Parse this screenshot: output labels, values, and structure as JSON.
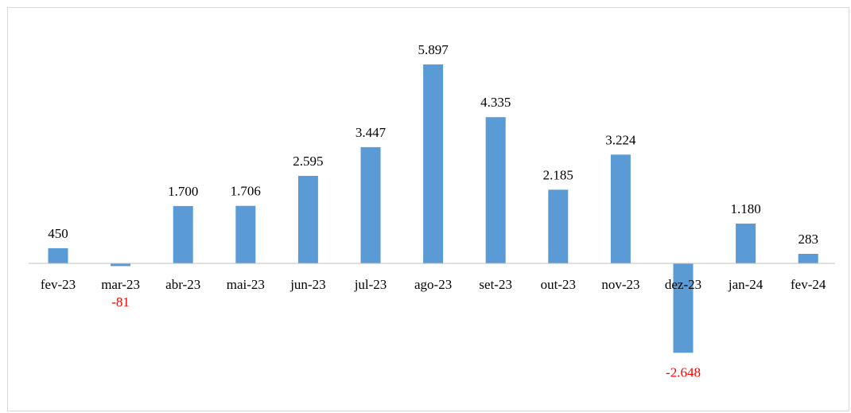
{
  "chart_data": {
    "type": "bar",
    "categories": [
      "fev-23",
      "mar-23",
      "abr-23",
      "mai-23",
      "jun-23",
      "jul-23",
      "ago-23",
      "set-23",
      "out-23",
      "nov-23",
      "dez-23",
      "jan-24",
      "fev-24"
    ],
    "values": [
      450,
      -81,
      1700,
      1706,
      2595,
      3447,
      5897,
      4335,
      2185,
      3224,
      -2648,
      1180,
      283
    ],
    "data_labels": [
      "450",
      "-81",
      "1.700",
      "1.706",
      "2.595",
      "3.447",
      "5.897",
      "4.335",
      "2.185",
      "3.224",
      "-2.648",
      "1.180",
      "283"
    ],
    "title": "",
    "xlabel": "",
    "ylabel": "",
    "ylim": [
      -4700,
      7000
    ],
    "grid": false,
    "legend": "none",
    "colors": {
      "bar": "#5b9bd5",
      "positive_label": "#000000",
      "negative_label": "#ff0000",
      "axis": "#bfbfbf",
      "border": "#d9d9d9"
    }
  }
}
